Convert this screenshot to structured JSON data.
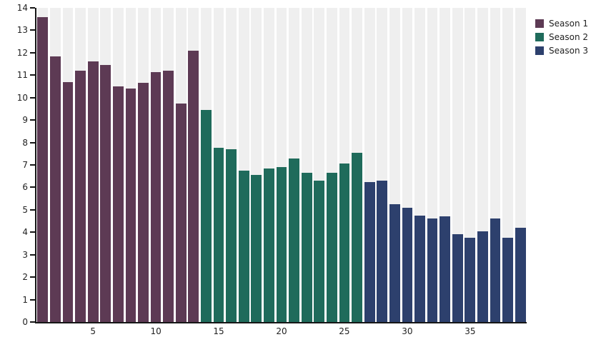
{
  "window": {
    "background": "#ffffff"
  },
  "chart_data": {
    "type": "bar",
    "title": "",
    "xlabel": "",
    "ylabel": "",
    "x_range": [
      1,
      39
    ],
    "x_ticks": [
      5,
      10,
      15,
      20,
      25,
      30,
      35
    ],
    "ylim": [
      0,
      14
    ],
    "y_ticks": [
      0,
      1,
      2,
      3,
      4,
      5,
      6,
      7,
      8,
      9,
      10,
      11,
      12,
      13,
      14
    ],
    "grid": false,
    "legend_position": "top-right-outside",
    "slot_background_color": "#efefef",
    "axis_color": "#161616",
    "text_color": "#222222",
    "series": [
      {
        "name": "Season 1",
        "color": "#5d3a54",
        "values": [
          13.6,
          11.85,
          10.7,
          11.2,
          11.6,
          11.45,
          10.5,
          10.4,
          10.65,
          11.15,
          11.2,
          9.75,
          12.1
        ]
      },
      {
        "name": "Season 2",
        "color": "#1f6b5b",
        "values": [
          9.45,
          7.75,
          7.7,
          6.75,
          6.55,
          6.85,
          6.9,
          7.3,
          6.65,
          6.3,
          6.65,
          7.05,
          7.55
        ]
      },
      {
        "name": "Season 3",
        "color": "#2d406d",
        "values": [
          6.25,
          6.3,
          5.25,
          5.1,
          4.75,
          4.6,
          4.7,
          3.9,
          3.75,
          4.05,
          4.6,
          3.75,
          4.2
        ]
      }
    ]
  }
}
